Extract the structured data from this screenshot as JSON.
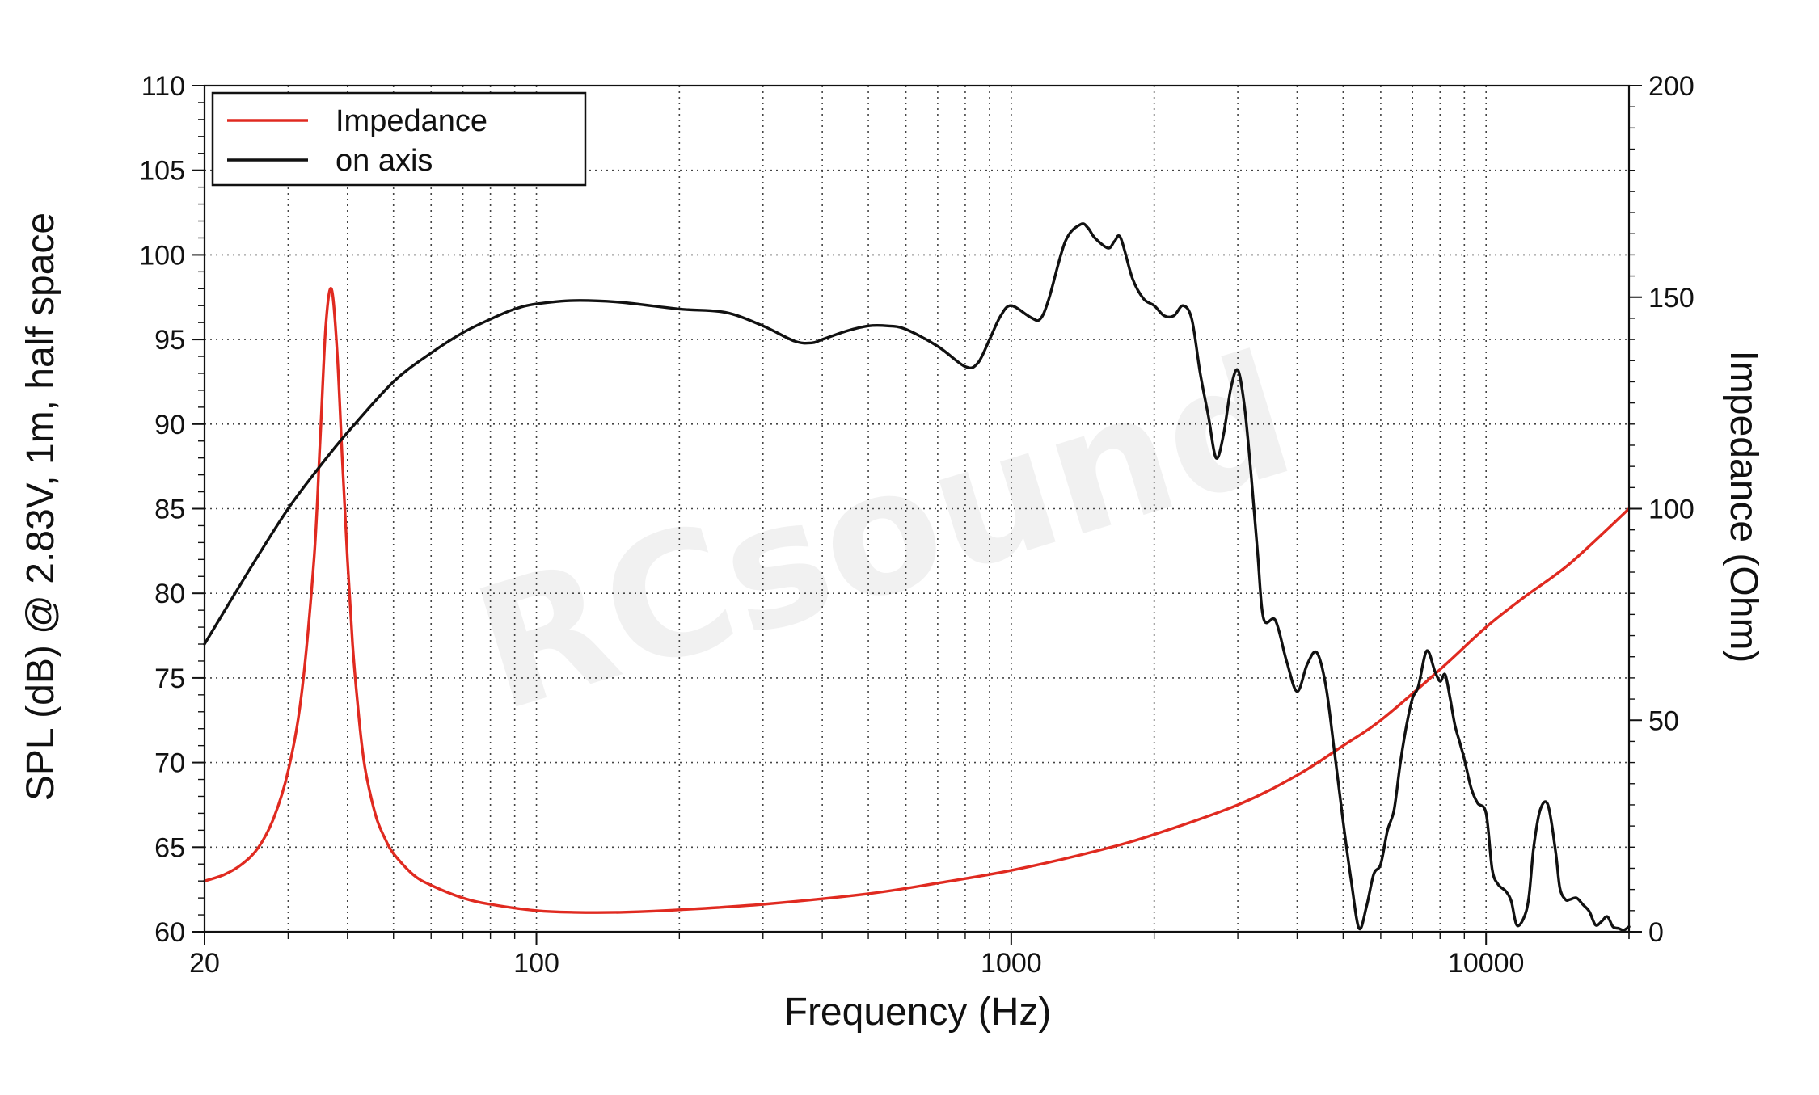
{
  "chart_data": {
    "type": "line",
    "xlabel": "Frequency (Hz)",
    "ylabel": "SPL (dB) @ 2.83V, 1m, half space",
    "y2label": "Impedance (Ohm)",
    "xscale": "log",
    "xlim": [
      20,
      20000
    ],
    "ylim": [
      60,
      110
    ],
    "y2lim": [
      0,
      200
    ],
    "grid": true,
    "legend_position": "top-left",
    "x_ticks": [
      "20",
      "100",
      "1000",
      "10000"
    ],
    "y_ticks": [
      "60",
      "65",
      "70",
      "75",
      "80",
      "85",
      "90",
      "95",
      "100",
      "105",
      "110"
    ],
    "y2_ticks": [
      "0",
      "50",
      "100",
      "150",
      "200"
    ],
    "watermark": "RCsound",
    "series": [
      {
        "name": "Impedance",
        "axis": "right",
        "color": "#e02a20",
        "x": [
          20,
          22,
          24,
          26,
          28,
          30,
          32,
          34,
          35,
          36,
          37,
          38,
          39,
          40,
          41,
          42,
          43,
          44,
          46,
          48,
          50,
          55,
          60,
          70,
          80,
          100,
          120,
          150,
          200,
          300,
          500,
          700,
          1000,
          1500,
          2000,
          3000,
          4000,
          5000,
          6000,
          8000,
          10000,
          12000,
          15000,
          20000
        ],
        "y": [
          12,
          13.5,
          16,
          20,
          27,
          38,
          56,
          88,
          115,
          143,
          152,
          138,
          112,
          88,
          68,
          54,
          43,
          36,
          27,
          22,
          18.5,
          13.5,
          11,
          8,
          6.5,
          5,
          4.6,
          4.6,
          5.2,
          6.5,
          9,
          11.5,
          14.5,
          19,
          23,
          30,
          37,
          44,
          50,
          62,
          72,
          79,
          87,
          100
        ]
      },
      {
        "name": "on axis",
        "axis": "left",
        "color": "#111111",
        "x": [
          20,
          25,
          30,
          35,
          40,
          50,
          60,
          70,
          80,
          90,
          100,
          120,
          150,
          200,
          250,
          300,
          350,
          380,
          400,
          450,
          500,
          550,
          600,
          700,
          800,
          850,
          900,
          950,
          1000,
          1100,
          1150,
          1200,
          1300,
          1400,
          1450,
          1500,
          1600,
          1650,
          1700,
          1800,
          1900,
          2000,
          2100,
          2200,
          2300,
          2400,
          2500,
          2600,
          2700,
          2800,
          2900,
          3000,
          3100,
          3200,
          3300,
          3400,
          3600,
          3800,
          4000,
          4200,
          4400,
          4600,
          4800,
          5000,
          5200,
          5400,
          5600,
          5800,
          6000,
          6200,
          6400,
          6600,
          6800,
          7000,
          7200,
          7500,
          7800,
          8000,
          8200,
          8400,
          8600,
          8800,
          9000,
          9300,
          9600,
          10000,
          10300,
          10600,
          11000,
          11300,
          11600,
          12000,
          12300,
          12600,
          13000,
          13500,
          14000,
          14300,
          14700,
          15000,
          15500,
          16000,
          16500,
          17000,
          17500,
          18000,
          18500,
          19000,
          19500,
          20000
        ],
        "y": [
          77,
          81.5,
          85,
          87.5,
          89.5,
          92.5,
          94.2,
          95.4,
          96.2,
          96.8,
          97.1,
          97.3,
          97.2,
          96.8,
          96.6,
          95.8,
          94.9,
          94.8,
          95,
          95.5,
          95.8,
          95.8,
          95.6,
          94.6,
          93.4,
          93.6,
          95,
          96.4,
          97,
          96.3,
          96.2,
          97.4,
          100.8,
          101.8,
          101.6,
          101,
          100.4,
          100.8,
          101,
          98.6,
          97.4,
          97,
          96.4,
          96.4,
          97,
          96.2,
          93,
          90.5,
          88,
          89.4,
          92.1,
          93.2,
          91,
          87,
          82.5,
          78.5,
          78.4,
          76,
          74.2,
          75.8,
          76.5,
          74.5,
          70.5,
          66.5,
          63,
          60.2,
          61.5,
          63.4,
          64,
          66,
          67.2,
          70,
          72.2,
          73.8,
          74.5,
          76.6,
          75.4,
          74.8,
          75.2,
          73.8,
          72.2,
          71.2,
          70.2,
          68.5,
          67.6,
          67,
          63.7,
          62.8,
          62.4,
          61.8,
          60.4,
          60.8,
          62,
          65,
          67.2,
          67.5,
          64.8,
          62.6,
          61.9,
          61.9,
          62,
          61.6,
          61.2,
          60.4,
          60.6,
          60.9,
          60.3,
          60.2,
          60.1,
          60.3
        ]
      }
    ]
  }
}
